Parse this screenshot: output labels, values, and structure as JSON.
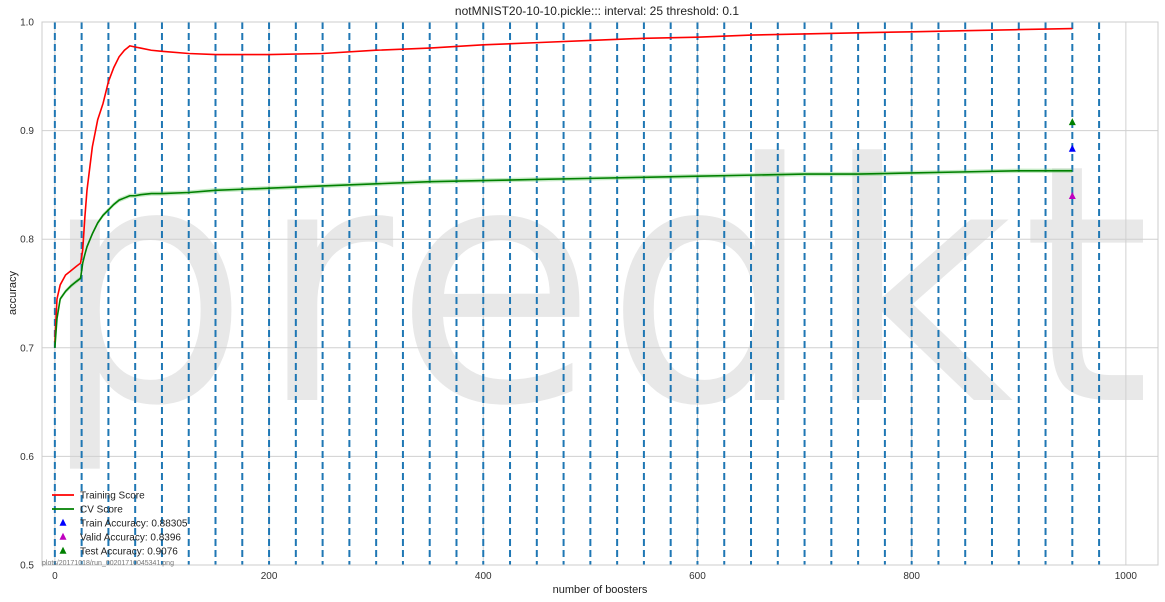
{
  "chart_data": {
    "type": "line",
    "title": "notMNIST20-10-10.pickle::: interval: 25 threshold: 0.1",
    "xlabel": "number of boosters",
    "ylabel": "accuracy",
    "xlim": [
      -12,
      1030
    ],
    "ylim": [
      0.5,
      1.0
    ],
    "x_ticks": [
      0,
      200,
      400,
      600,
      800,
      1000
    ],
    "y_ticks": [
      0.5,
      0.6,
      0.7,
      0.8,
      0.9,
      1.0
    ],
    "x_tick_labels": [
      "0",
      "200",
      "400",
      "600",
      "800",
      "1000"
    ],
    "y_tick_labels": [
      "0.5",
      "0.6",
      "0.7",
      "0.8",
      "0.9",
      "1.0"
    ],
    "grid": true,
    "legend_position": "bottom-left",
    "vlines": {
      "style": "dashed",
      "color": "#1f77b4",
      "x": [
        0,
        25,
        50,
        75,
        100,
        125,
        150,
        175,
        200,
        225,
        250,
        275,
        300,
        325,
        350,
        375,
        400,
        425,
        450,
        475,
        500,
        525,
        550,
        575,
        600,
        625,
        650,
        675,
        700,
        725,
        750,
        775,
        800,
        825,
        850,
        875,
        900,
        925,
        950,
        975
      ]
    },
    "series": [
      {
        "name": "Training Score",
        "color": "#ff0000",
        "x": [
          0,
          2,
          5,
          10,
          15,
          20,
          24,
          26,
          28,
          30,
          35,
          40,
          45,
          50,
          55,
          60,
          65,
          70,
          75,
          80,
          90,
          100,
          125,
          150,
          175,
          200,
          250,
          300,
          350,
          400,
          450,
          500,
          550,
          600,
          650,
          700,
          750,
          800,
          850,
          900,
          950
        ],
        "y": [
          0.705,
          0.745,
          0.758,
          0.767,
          0.771,
          0.775,
          0.778,
          0.79,
          0.82,
          0.845,
          0.885,
          0.91,
          0.925,
          0.945,
          0.958,
          0.968,
          0.974,
          0.978,
          0.977,
          0.976,
          0.974,
          0.973,
          0.971,
          0.97,
          0.97,
          0.97,
          0.971,
          0.974,
          0.976,
          0.979,
          0.981,
          0.983,
          0.985,
          0.986,
          0.988,
          0.989,
          0.99,
          0.991,
          0.992,
          0.993,
          0.994
        ]
      },
      {
        "name": "CV Score",
        "color": "#008000",
        "x": [
          0,
          2,
          5,
          10,
          15,
          20,
          24,
          26,
          28,
          30,
          35,
          40,
          45,
          50,
          55,
          60,
          65,
          70,
          75,
          80,
          90,
          100,
          125,
          150,
          175,
          200,
          250,
          300,
          350,
          400,
          450,
          500,
          550,
          600,
          650,
          700,
          750,
          800,
          850,
          900,
          950
        ],
        "y": [
          0.7,
          0.727,
          0.745,
          0.752,
          0.757,
          0.761,
          0.764,
          0.778,
          0.786,
          0.793,
          0.805,
          0.815,
          0.822,
          0.827,
          0.832,
          0.836,
          0.838,
          0.84,
          0.84,
          0.841,
          0.842,
          0.842,
          0.843,
          0.845,
          0.846,
          0.847,
          0.849,
          0.851,
          0.853,
          0.854,
          0.855,
          0.856,
          0.857,
          0.858,
          0.859,
          0.86,
          0.86,
          0.861,
          0.862,
          0.863,
          0.863
        ]
      }
    ],
    "markers": [
      {
        "name": "Train Accuracy: 0.88305",
        "x": 950,
        "y": 0.88305,
        "color": "#0000ff",
        "shape": "triangle"
      },
      {
        "name": "Valid Accuracy: 0.8396",
        "x": 950,
        "y": 0.8396,
        "color": "#bf00bf",
        "shape": "triangle"
      },
      {
        "name": "Test Accuracy: 0.9076",
        "x": 950,
        "y": 0.9076,
        "color": "#008000",
        "shape": "triangle"
      }
    ],
    "watermark": "predkt.io",
    "footer_text": "plots/20171018/run_00201710045341.png"
  }
}
